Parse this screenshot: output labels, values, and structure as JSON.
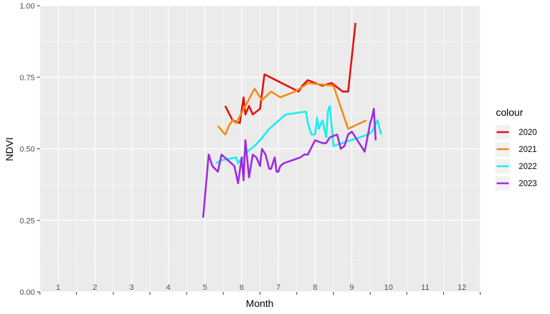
{
  "chart_data": {
    "type": "line",
    "title": "",
    "xlabel": "Month",
    "ylabel": "NDVI",
    "xlim": [
      0.5,
      12.5
    ],
    "ylim": [
      0,
      1
    ],
    "x_ticks": [
      "1",
      "2",
      "3",
      "4",
      "5",
      "6",
      "7",
      "8",
      "9",
      "10",
      "11",
      "12"
    ],
    "y_ticks": [
      "0.00",
      "0.25",
      "0.50",
      "0.75",
      "1.00"
    ],
    "y_tick_values": [
      0,
      0.25,
      0.5,
      0.75,
      1.0
    ],
    "grid": true,
    "legend_title": "colour",
    "legend_position": "right",
    "series": [
      {
        "name": "2020",
        "color": "#e6100f",
        "x": [
          5.55,
          5.75,
          5.95,
          6.05,
          6.1,
          6.2,
          6.3,
          6.5,
          6.62,
          7.55,
          7.65,
          7.8,
          8.2,
          8.45,
          8.75,
          8.9,
          9.1
        ],
        "y": [
          0.65,
          0.6,
          0.59,
          0.68,
          0.62,
          0.65,
          0.62,
          0.64,
          0.76,
          0.7,
          0.72,
          0.74,
          0.72,
          0.73,
          0.7,
          0.7,
          0.94
        ]
      },
      {
        "name": "2021",
        "color": "#f58b11",
        "x": [
          5.35,
          5.55,
          5.65,
          5.75,
          5.85,
          6.1,
          6.35,
          6.55,
          6.8,
          7.05,
          7.45,
          7.7,
          7.8,
          8.5,
          8.9,
          9.4
        ],
        "y": [
          0.58,
          0.55,
          0.58,
          0.6,
          0.59,
          0.65,
          0.71,
          0.67,
          0.7,
          0.68,
          0.7,
          0.72,
          0.73,
          0.72,
          0.57,
          0.6
        ]
      },
      {
        "name": "2022",
        "color": "#18eef2",
        "x": [
          5.3,
          5.45,
          5.85,
          5.9,
          5.95,
          6.05,
          6.15,
          6.35,
          6.5,
          6.75,
          7.2,
          7.75,
          7.8,
          7.9,
          8.0,
          8.05,
          8.1,
          8.2,
          8.3,
          8.35,
          8.4,
          8.5,
          9.45,
          9.55,
          9.7,
          9.8
        ],
        "y": [
          0.45,
          0.46,
          0.47,
          0.45,
          0.46,
          0.47,
          0.49,
          0.51,
          0.53,
          0.57,
          0.62,
          0.63,
          0.59,
          0.55,
          0.55,
          0.61,
          0.57,
          0.6,
          0.54,
          0.63,
          0.65,
          0.51,
          0.55,
          0.56,
          0.6,
          0.55
        ]
      },
      {
        "name": "2023",
        "color": "#a02ae0",
        "x": [
          4.95,
          5.1,
          5.2,
          5.35,
          5.45,
          5.8,
          5.9,
          6.0,
          6.05,
          6.1,
          6.2,
          6.3,
          6.4,
          6.5,
          6.55,
          6.65,
          6.75,
          6.8,
          6.9,
          6.95,
          7.0,
          7.05,
          7.15,
          7.6,
          7.7,
          7.8,
          8.0,
          8.2,
          8.3,
          8.4,
          8.6,
          8.7,
          8.8,
          8.9,
          9.0,
          9.35,
          9.5,
          9.55,
          9.6,
          9.65
        ],
        "y": [
          0.26,
          0.48,
          0.44,
          0.42,
          0.48,
          0.44,
          0.38,
          0.47,
          0.39,
          0.53,
          0.4,
          0.48,
          0.47,
          0.44,
          0.5,
          0.48,
          0.43,
          0.43,
          0.47,
          0.42,
          0.42,
          0.44,
          0.45,
          0.47,
          0.48,
          0.48,
          0.53,
          0.52,
          0.52,
          0.54,
          0.55,
          0.5,
          0.51,
          0.55,
          0.56,
          0.49,
          0.59,
          0.61,
          0.64,
          0.53
        ]
      }
    ]
  }
}
